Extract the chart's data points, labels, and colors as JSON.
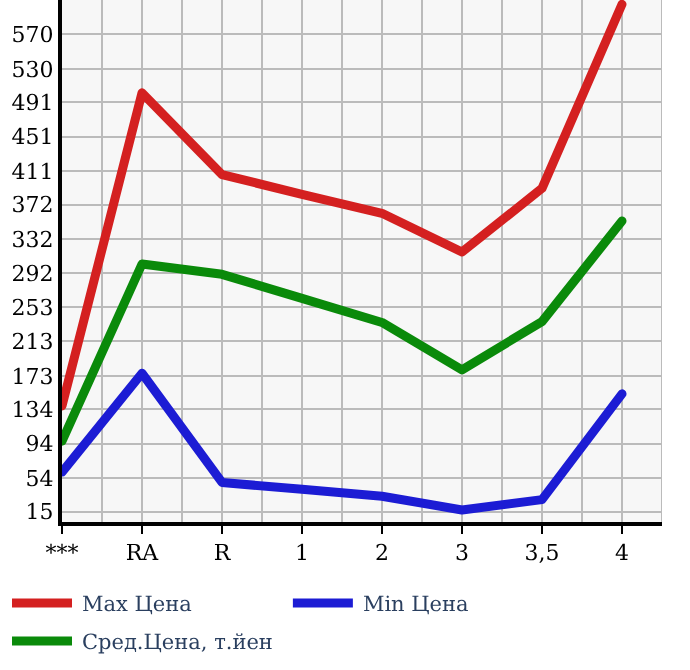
{
  "chart_data": {
    "type": "line",
    "categories": [
      "***",
      "RA",
      "R",
      "1",
      "2",
      "3",
      "3,5",
      "4"
    ],
    "series": [
      {
        "name": "Max Цена",
        "color": "#d42020",
        "values": [
          138,
          502,
          407,
          384,
          362,
          317,
          391,
          605
        ]
      },
      {
        "name": "Min Цена",
        "color": "#1c1cd4",
        "values": [
          61,
          176,
          49,
          41,
          33,
          17,
          29,
          152
        ]
      },
      {
        "name": "Сред.Цена, т.йен",
        "color": "#0a8a0a",
        "values": [
          97,
          303,
          291,
          263,
          235,
          180,
          236,
          353
        ]
      }
    ],
    "ylim": [
      3,
      610
    ],
    "yticks": [
      15,
      54,
      94,
      134,
      173,
      213,
      253,
      292,
      332,
      372,
      411,
      451,
      491,
      530,
      570
    ],
    "grid": true,
    "legend": "bottom",
    "marker": "none",
    "line_style": "solid"
  }
}
